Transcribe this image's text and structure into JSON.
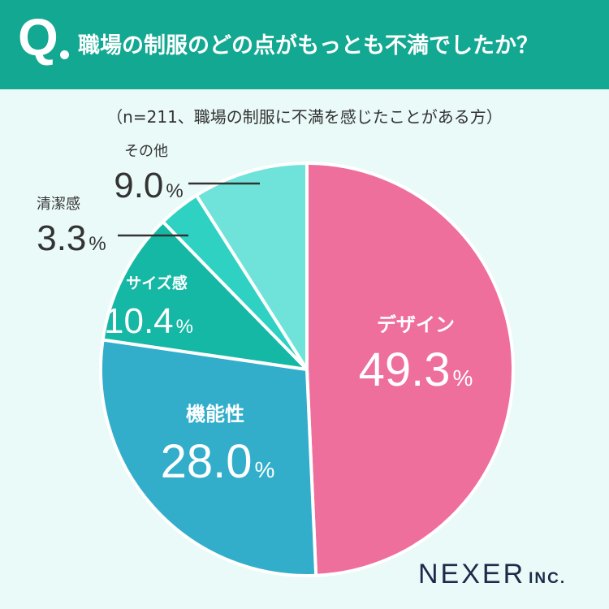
{
  "header": {
    "q_mark": "Q",
    "question": "職場の制服のどの点がもっとも不満でしたか？"
  },
  "subtitle": "（n=211、職場の制服に不満を感じたことがある方）",
  "brand": {
    "name": "NEXER",
    "suffix": "INC."
  },
  "chart_data": {
    "type": "pie",
    "unit": "%",
    "categories": [
      "デザイン",
      "機能性",
      "サイズ感",
      "清潔感",
      "その他"
    ],
    "values": [
      49.3,
      28.0,
      10.4,
      3.3,
      9.0
    ],
    "colors": [
      "#ee6e9c",
      "#32aecb",
      "#15b8a5",
      "#2fd1c3",
      "#6fe3da"
    ],
    "start_angle": "12 o'clock",
    "direction": "clockwise"
  }
}
